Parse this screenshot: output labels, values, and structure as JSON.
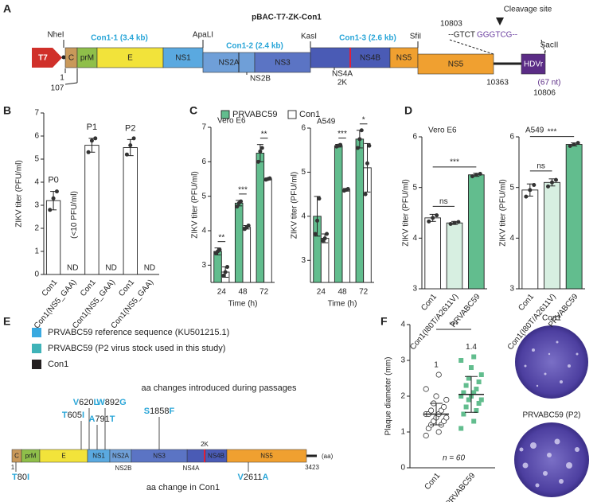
{
  "panel_labels": [
    "A",
    "B",
    "C",
    "D",
    "E",
    "F"
  ],
  "diagram_a": {
    "title": "pBAC-T7-ZK-Con1",
    "promoter": "T7",
    "segments": [
      {
        "label": "C",
        "color": "#c9995a"
      },
      {
        "label": "prM",
        "color": "#8fbf4a"
      },
      {
        "label": "E",
        "color": "#f2e33a"
      },
      {
        "label": "NS1",
        "color": "#5aa9e0"
      },
      {
        "label": "NS2A",
        "color": "#6f9fd8"
      },
      {
        "label": "NS3",
        "color": "#5b74c4"
      },
      {
        "label": "NS4B",
        "color": "#4a5bb5"
      },
      {
        "label": "NS5",
        "color": "#f0a030"
      },
      {
        "label": "NS5",
        "color": "#f0a030"
      },
      {
        "label": "HDVr",
        "color": "#5b2c86"
      }
    ],
    "below_labels": [
      "NS2B",
      "NS4A",
      "2K"
    ],
    "fragments": [
      "Con1-1 (3.4 kb)",
      "Con1-2 (2.4 kb)",
      "Con1-3 (2.6 kb)"
    ],
    "sites": [
      "NheI",
      "ApaLI",
      "KasI",
      "SfiI",
      "SacII"
    ],
    "positions": [
      "1",
      "107",
      "10363",
      "10806",
      "10803"
    ],
    "hdvr_length": "(67 nt)",
    "cleavage": {
      "label": "Cleavage site",
      "seq_left": "--GTCT",
      "seq_right": "GGGTCG--"
    }
  },
  "chart_data": [
    {
      "type": "bar",
      "y_label": "ZIKV titer (PFU/ml)",
      "categories": [
        "Con1",
        "Con1(NS5_GAA)",
        "Con1",
        "Con1(NS5_GAA)",
        "Con1",
        "Con1(NS5_GAA)"
      ],
      "values": [
        3.2,
        null,
        5.6,
        null,
        5.5,
        null
      ],
      "value_labels": [
        null,
        "ND",
        null,
        "ND",
        null,
        "ND"
      ],
      "errors": [
        0.4,
        null,
        0.3,
        null,
        0.35,
        null
      ],
      "points": [
        [
          2.8,
          3.3,
          3.6
        ],
        null,
        [
          5.3,
          5.8,
          5.9
        ],
        null,
        [
          5.2,
          5.6,
          5.9
        ],
        null
      ],
      "color": "#ffffff",
      "annotations": [
        "P0",
        "P1",
        "P2",
        "(<10 PFU/ml)"
      ],
      "ylim": [
        0,
        7
      ],
      "yticks": [
        0,
        1,
        2,
        3,
        4,
        5,
        6,
        7
      ]
    },
    {
      "type": "bar",
      "title": "Vero E6",
      "y_label": "ZIKV titer (PFU/ml)",
      "x_label": "Time (h)",
      "categories": [
        "24",
        "48",
        "72"
      ],
      "series": [
        {
          "name": "PRVABC59",
          "color": "#62bd8e",
          "values": [
            3.4,
            4.8,
            6.25
          ],
          "errors": [
            0.1,
            0.08,
            0.25
          ],
          "points": [
            [
              3.35,
              3.4,
              3.45
            ],
            [
              4.7,
              4.8,
              4.85
            ],
            [
              6.0,
              6.3,
              6.4
            ]
          ]
        },
        {
          "name": "Con1",
          "color": "#ffffff",
          "values": [
            2.8,
            4.1,
            5.5
          ],
          "errors": [
            0.15,
            0.05,
            0.03
          ],
          "points": [
            [
              2.7,
              2.8,
              2.95
            ],
            [
              4.05,
              4.1,
              4.15
            ],
            [
              5.48,
              5.5,
              5.52
            ]
          ]
        }
      ],
      "significance": [
        "**",
        "***",
        "**"
      ],
      "ylim": [
        2.5,
        7
      ],
      "yticks": [
        3,
        4,
        5,
        6,
        7
      ]
    },
    {
      "type": "bar",
      "title": "A549",
      "y_label": "ZIKV titer (PFU/ml)",
      "x_label": "Time (h)",
      "categories": [
        "24",
        "48",
        "72"
      ],
      "series": [
        {
          "name": "PRVABC59",
          "color": "#62bd8e",
          "values": [
            4.0,
            5.6,
            5.75
          ],
          "errors": [
            0.45,
            0.03,
            0.2
          ],
          "points": [
            [
              3.6,
              3.9,
              4.4
            ],
            [
              5.58,
              5.6,
              5.62
            ],
            [
              5.55,
              5.75,
              5.95
            ]
          ]
        },
        {
          "name": "Con1",
          "color": "#ffffff",
          "values": [
            3.5,
            4.6,
            5.1
          ],
          "errors": [
            0.1,
            0.03,
            0.55
          ],
          "points": [
            [
              3.45,
              3.5,
              3.6
            ],
            [
              4.58,
              4.6,
              4.62
            ],
            [
              4.5,
              5.2,
              5.6
            ]
          ]
        }
      ],
      "significance": [
        null,
        "***",
        "*"
      ],
      "ylim": [
        2.5,
        6
      ],
      "yticks": [
        3,
        4,
        5,
        6
      ]
    },
    {
      "type": "bar",
      "title": "Vero E6",
      "y_label": "ZIKV titer (PFU/ml)",
      "categories": [
        "Con1",
        "Con1(I80T/A2611V)",
        "PRVABC59"
      ],
      "values": [
        4.4,
        4.3,
        5.25
      ],
      "errors": [
        0.07,
        0.03,
        0.03
      ],
      "points": [
        [
          4.33,
          4.4,
          4.45
        ],
        [
          4.28,
          4.3,
          4.32
        ],
        [
          5.22,
          5.25,
          5.27
        ]
      ],
      "colors": [
        "#ffffff",
        "#d7efe1",
        "#62bd8e"
      ],
      "significance": [
        "ns",
        "***"
      ],
      "ylim": [
        3,
        6
      ],
      "yticks": [
        3,
        4,
        5,
        6
      ]
    },
    {
      "type": "bar",
      "title": "A549",
      "y_label": "ZIKV titer (PFU/ml)",
      "categories": [
        "Con1",
        "Con1(I80T/A2611V)",
        "PRVABC59"
      ],
      "values": [
        4.95,
        5.1,
        5.85
      ],
      "errors": [
        0.12,
        0.07,
        0.03
      ],
      "points": [
        [
          4.82,
          4.95,
          5.05
        ],
        [
          5.02,
          5.1,
          5.15
        ],
        [
          5.82,
          5.85,
          5.88
        ]
      ],
      "colors": [
        "#ffffff",
        "#d7efe1",
        "#62bd8e"
      ],
      "significance": [
        "ns",
        "***"
      ],
      "ylim": [
        3,
        6
      ],
      "yticks": [
        3,
        4,
        5,
        6
      ]
    },
    {
      "type": "dot",
      "y_label": "Plaque diameter (mm)",
      "categories": [
        "Con1",
        "PRVABC59"
      ],
      "points": [
        [
          0.9,
          1.0,
          1.1,
          1.2,
          1.2,
          1.3,
          1.3,
          1.4,
          1.4,
          1.5,
          1.5,
          1.5,
          1.6,
          1.6,
          1.7,
          1.8,
          1.9,
          2.0,
          2.2,
          2.6
        ],
        [
          1.1,
          1.3,
          1.5,
          1.6,
          1.7,
          1.8,
          1.9,
          1.9,
          2.0,
          2.0,
          2.1,
          2.1,
          2.2,
          2.3,
          2.4,
          2.5,
          2.6,
          2.8,
          3.0,
          3.1
        ]
      ],
      "means": [
        1.5,
        2.05
      ],
      "sds": [
        0.3,
        0.5
      ],
      "colors": [
        "#ffffff",
        "#62bd8e"
      ],
      "fold_labels": [
        "1",
        "1.4"
      ],
      "significance": "***",
      "n_label": "n = 60",
      "ylim": [
        0,
        4
      ],
      "yticks": [
        0,
        1,
        2,
        3,
        4
      ]
    }
  ],
  "plaque_images": [
    "Con1",
    "PRVABC59 (P2)"
  ],
  "diagram_e": {
    "legend": [
      {
        "label": "PRVABC59 reference sequence (KU501215.1)",
        "color": "#39a9e0"
      },
      {
        "label": "PRVABC59 (P2 virus stock used in this study)",
        "color": "#3fb3b8"
      },
      {
        "label": "Con1",
        "color": "#231f20"
      }
    ],
    "heading": "aa changes introduced during passages",
    "footer": "aa change in Con1",
    "segments": [
      {
        "label": "C",
        "color": "#c9995a"
      },
      {
        "label": "prM",
        "color": "#8fbf4a"
      },
      {
        "label": "E",
        "color": "#f2e33a"
      },
      {
        "label": "NS1",
        "color": "#5aa9e0"
      },
      {
        "label": "NS2A",
        "color": "#6f9fd8"
      },
      {
        "label": "NS3",
        "color": "#5b74c4"
      },
      {
        "label": "NS4B",
        "color": "#4a5bb5"
      },
      {
        "label": "NS5",
        "color": "#f0a030"
      }
    ],
    "below_labels": [
      "NS2B",
      "NS4A"
    ],
    "above_labels": [
      "2K"
    ],
    "ends": [
      "1",
      "3423",
      "(aa)"
    ],
    "mutations": [
      {
        "from": "V",
        "pos": "620",
        "to": "L"
      },
      {
        "from": "T",
        "pos": "605",
        "to": "I"
      },
      {
        "from": "A",
        "pos": "791",
        "to": "T"
      },
      {
        "from": "W",
        "pos": "892",
        "to": "G"
      },
      {
        "from": "S",
        "pos": "1858",
        "to": "F"
      },
      {
        "from": "T",
        "pos": "80",
        "to": "I"
      },
      {
        "from": "V",
        "pos": "2611",
        "to": "A"
      }
    ]
  }
}
